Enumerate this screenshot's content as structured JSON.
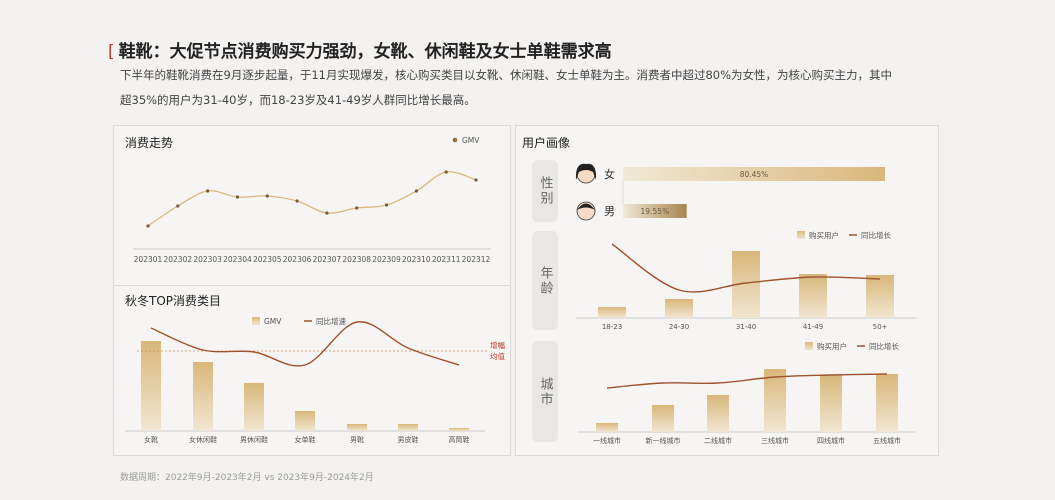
{
  "title": "鞋靴：大促节点消费购买力强劲，女靴、休闲鞋及女士单鞋需求高",
  "subtitle": [
    "下半年的鞋靴消费在9月逐步起量，于11月实现爆发，核心购买类目以女靴、休闲鞋、女士单鞋为主。消费者中超过80%为女性，为核心购买主力，其中",
    "超35%的用户为31-40岁，而18-23岁及41-49岁人群同比增长最高。"
  ],
  "footer": "数据周期：2022年9月-2023年2月 vs 2023年9月-2024年2月",
  "colors": {
    "gold": "#d9b77a",
    "line": "#a0522d",
    "title_mark": "#c0392b"
  },
  "user_portrait": {
    "title": "用户画像",
    "gender_label": "性别",
    "age_label": "年龄",
    "city_label": "城市",
    "gender": [
      {
        "label": "女",
        "value": "80.45%",
        "share": 80.45,
        "icon": "female-avatar-icon"
      },
      {
        "label": "男",
        "value": "19.55%",
        "share": 19.55,
        "icon": "male-avatar-icon"
      }
    ]
  },
  "chart_data": [
    {
      "type": "line",
      "title": "消费走势",
      "legend": [
        "GMV"
      ],
      "legend_position": "top-right",
      "grid": false,
      "categories": [
        "202301",
        "202302",
        "202303",
        "202304",
        "202305",
        "202306",
        "202307",
        "202308",
        "202309",
        "202310",
        "202311",
        "202312"
      ],
      "series": [
        {
          "name": "GMV",
          "values": [
            23,
            43,
            58,
            52,
            53,
            48,
            36,
            41,
            44,
            58,
            77,
            69
          ]
        }
      ]
    },
    {
      "type": "bar",
      "title": "秋冬TOP消费类目",
      "legend": [
        "GMV",
        "同比增速"
      ],
      "legend_position": "top",
      "annotation": "增幅均值",
      "categories": [
        "女靴",
        "女休闲鞋",
        "男休闲鞋",
        "女单鞋",
        "男靴",
        "男皮鞋",
        "高筒鞋"
      ],
      "series": [
        {
          "name": "GMV",
          "values": [
            90,
            69,
            48,
            20,
            7,
            7,
            3
          ]
        },
        {
          "name": "同比增速",
          "values": [
            103,
            81,
            79,
            66,
            109,
            83,
            66
          ]
        }
      ],
      "average": 80
    },
    {
      "type": "bar",
      "legend": [
        "购买用户",
        "同比增长"
      ],
      "legend_position": "top-right",
      "categories": [
        "18-23",
        "24-30",
        "31-40",
        "41-49",
        "50+"
      ],
      "series": [
        {
          "name": "购买用户",
          "values": [
            11,
            19,
            67,
            44,
            43
          ]
        },
        {
          "name": "同比增长",
          "values": [
            74,
            28,
            35,
            41,
            39
          ]
        }
      ]
    },
    {
      "type": "bar",
      "legend": [
        "购买用户",
        "同比增长"
      ],
      "legend_position": "top-right",
      "categories": [
        "一线城市",
        "新一线城市",
        "二线城市",
        "三线城市",
        "四线城市",
        "五线城市"
      ],
      "series": [
        {
          "name": "购买用户",
          "values": [
            9,
            27,
            37,
            63,
            57,
            58
          ]
        },
        {
          "name": "同比增长",
          "values": [
            44,
            49,
            49,
            55,
            57,
            58
          ]
        }
      ]
    }
  ]
}
